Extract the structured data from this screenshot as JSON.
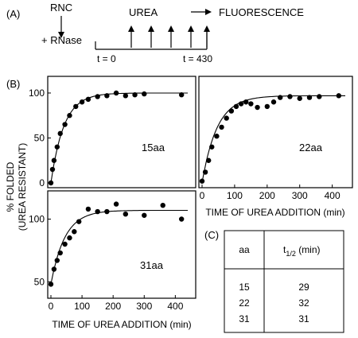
{
  "panel_a": {
    "label": "(A)",
    "rnc": "RNC",
    "rnase": "+ RNase",
    "urea": "UREA",
    "fluorescence": "FLUORESCENCE",
    "t_start": "t = 0",
    "t_end": "t = 430"
  },
  "panel_b": {
    "label": "(B)"
  },
  "panel_c": {
    "label": "(C)"
  },
  "shared": {
    "ylabel_line1": "% FOLDED",
    "ylabel_line2": "(UREA RESISTANT)",
    "xlabel": "TIME OF UREA ADDITION (min)"
  },
  "table": {
    "headers": [
      "aa",
      "t1/2 (min)"
    ],
    "header_main": "t",
    "header_sub": "1/2",
    "header_unit": " (min)",
    "rows": [
      [
        "15",
        "29"
      ],
      [
        "22",
        "32"
      ],
      [
        "31",
        "31"
      ]
    ]
  },
  "chart_data": [
    {
      "type": "scatter",
      "panel": "15aa",
      "annotation": "15aa",
      "ylabel": "% FOLDED (UREA RESISTANT)",
      "xlabel": "",
      "xlim": [
        0,
        440
      ],
      "ylim": [
        0,
        115
      ],
      "yticks": [
        0,
        50,
        100
      ],
      "xticks": [],
      "x": [
        0,
        5,
        10,
        20,
        30,
        45,
        60,
        80,
        100,
        120,
        150,
        180,
        210,
        240,
        270,
        300,
        420
      ],
      "y": [
        0,
        15,
        25,
        40,
        55,
        65,
        75,
        85,
        90,
        93,
        96,
        97,
        100,
        97,
        98,
        99,
        98
      ],
      "fit": {
        "plateau": 100,
        "t_half": 29
      }
    },
    {
      "type": "scatter",
      "panel": "22aa",
      "annotation": "22aa",
      "xlabel": "TIME OF UREA ADDITION (min)",
      "xlim": [
        0,
        440
      ],
      "ylim": [
        0,
        115
      ],
      "xticks": [
        0,
        100,
        200,
        300,
        400
      ],
      "yticks": [],
      "x": [
        0,
        10,
        20,
        30,
        45,
        60,
        75,
        90,
        105,
        120,
        135,
        150,
        170,
        200,
        220,
        240,
        270,
        300,
        330,
        360,
        420
      ],
      "y": [
        2,
        12,
        25,
        40,
        52,
        62,
        72,
        80,
        85,
        88,
        90,
        88,
        84,
        85,
        90,
        95,
        96,
        94,
        95,
        96,
        97
      ],
      "fit": {
        "plateau": 97,
        "t_half": 32
      }
    },
    {
      "type": "scatter",
      "panel": "31aa",
      "annotation": "31aa",
      "xlabel": "TIME OF UREA ADDITION (min)",
      "xlim": [
        0,
        440
      ],
      "ylim": [
        40,
        120
      ],
      "xticks": [
        0,
        100,
        200,
        300,
        400
      ],
      "yticks": [
        50,
        100
      ],
      "x": [
        0,
        10,
        20,
        30,
        45,
        60,
        75,
        90,
        120,
        150,
        180,
        210,
        240,
        300,
        360,
        420
      ],
      "y": [
        48,
        60,
        67,
        73,
        80,
        85,
        90,
        98,
        108,
        106,
        106,
        112,
        104,
        103,
        111,
        100
      ],
      "fit": {
        "baseline": 48,
        "plateau": 107,
        "t_half": 31
      }
    }
  ]
}
